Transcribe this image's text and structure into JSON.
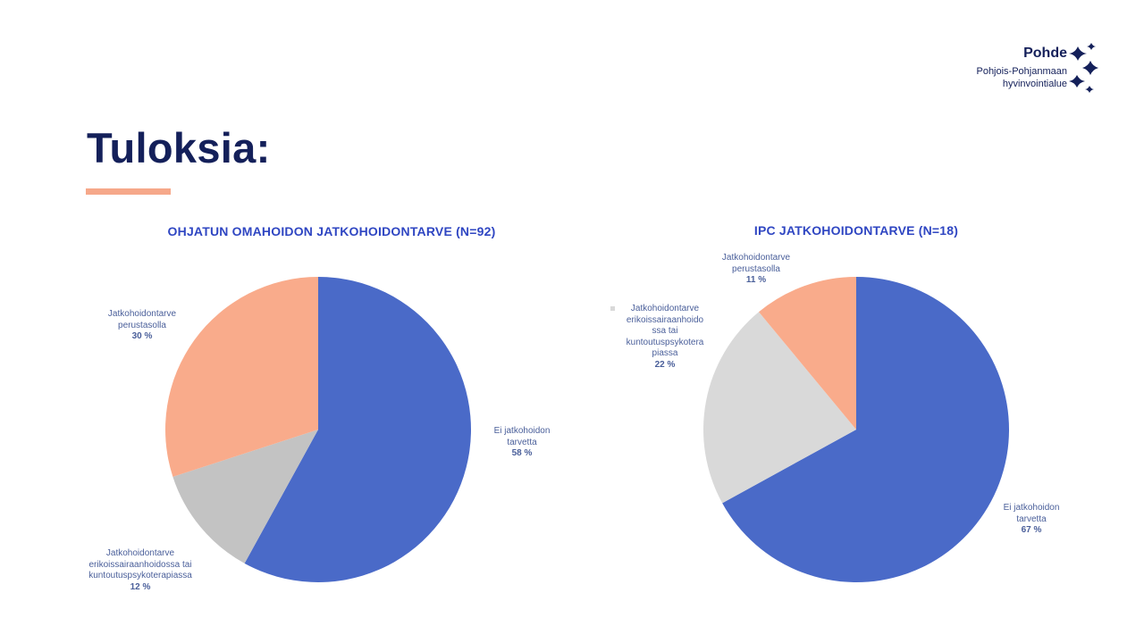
{
  "slide": {
    "title": "Tuloksia:",
    "accent_color": "#f6a88a",
    "title_color": "#14205a"
  },
  "logo": {
    "name": "Pohde",
    "line1": "Pohjois-Pohjanmaan",
    "line2": "hyvinvointialue",
    "icon": "sparkle-cluster-icon"
  },
  "chart_data": [
    {
      "type": "pie",
      "title": "OHJATUN OMAHOIDON JATKOHOIDONTARVE (N=92)",
      "labels": [
        "Ei jatkohoidon tarvetta",
        "Jatkohoidontarve erikoissairaanhoidossa tai kuntoutuspsykoterapiassa",
        "Jatkohoidontarve perustasolla"
      ],
      "values": [
        58,
        12,
        30
      ],
      "value_labels": [
        "58 %",
        "12 %",
        "30 %"
      ],
      "colors": [
        "#4a6ac8",
        "#c3c3c3",
        "#f9ab8b"
      ],
      "start": "12 o'clock",
      "direction": "clockwise"
    },
    {
      "type": "pie",
      "title": "IPC JATKOHOIDONTARVE (N=18)",
      "labels": [
        "Ei jatkohoidon tarvetta",
        "Jatkohoidontarve erikoissairaanhoidossa tai kuntoutuspsykoterapiassa",
        "Jatkohoidontarve perustasolla"
      ],
      "values": [
        67,
        22,
        11
      ],
      "value_labels": [
        "67 %",
        "22 %",
        "11 %"
      ],
      "colors": [
        "#4a6ac8",
        "#d9d9d9",
        "#f9ab8b"
      ],
      "start": "12 o'clock",
      "direction": "clockwise"
    }
  ],
  "labels": {
    "c1_s0_l1": "Ei jatkohoidon",
    "c1_s0_l2": "tarvetta",
    "c1_s1_l1": "Jatkohoidontarve",
    "c1_s1_l2": "erikoissairaanhoidossa tai",
    "c1_s1_l3": "kuntoutuspsykoterapiassa",
    "c1_s2_l1": "Jatkohoidontarve",
    "c1_s2_l2": "perustasolla",
    "c2_s0_l1": "Ei jatkohoidon",
    "c2_s0_l2": "tarvetta",
    "c2_s1_l1": "Jatkohoidontarve",
    "c2_s1_l2": "erikoissairaanhoido",
    "c2_s1_l3": "ssa tai",
    "c2_s1_l4": "kuntoutuspsykotera",
    "c2_s1_l5": "piassa",
    "c2_s2_l1": "Jatkohoidontarve",
    "c2_s2_l2": "perustasolla"
  }
}
